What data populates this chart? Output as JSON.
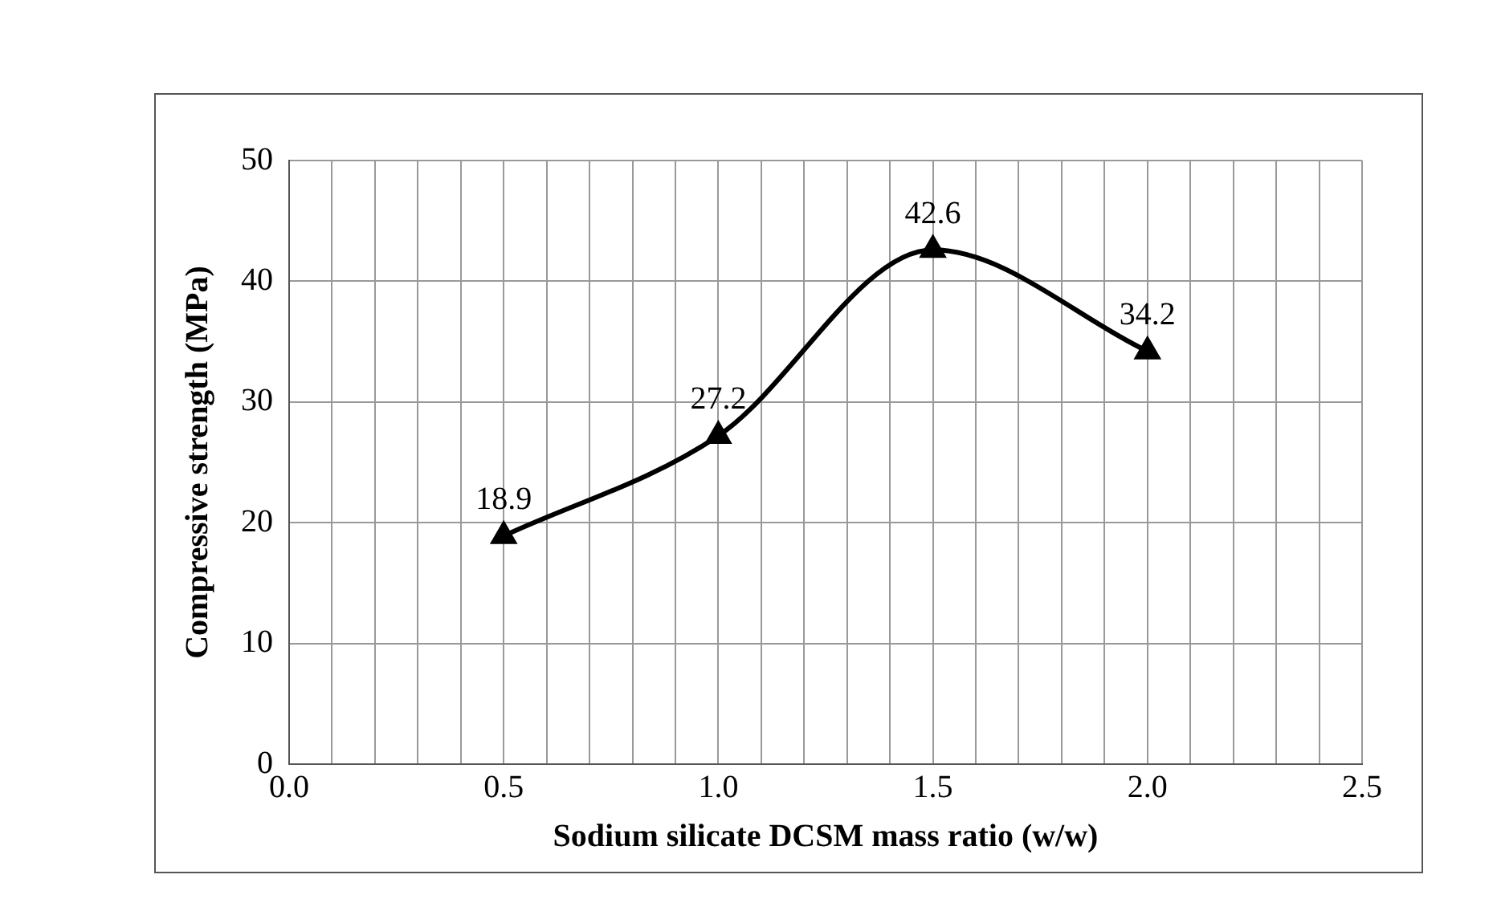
{
  "chart_data": {
    "type": "line",
    "xlabel": "Sodium silicate DCSM mass ratio (w/w)",
    "ylabel": "Compressive strength (MPa)",
    "x": [
      0.5,
      1.0,
      1.5,
      2.0
    ],
    "series": [
      {
        "color": "#000000",
        "values": [
          18.9,
          27.2,
          42.6,
          34.2
        ]
      }
    ],
    "xlim": [
      0,
      2.5
    ],
    "ylim": [
      0,
      50
    ],
    "xticks": [
      {
        "value": 0,
        "label": "0.0"
      },
      {
        "value": 0.1,
        "label": null
      },
      {
        "value": 0.2,
        "label": null
      },
      {
        "value": 0.3,
        "label": null
      },
      {
        "value": 0.4,
        "label": null
      },
      0.5,
      {
        "value": 0.6,
        "label": null
      },
      {
        "value": 0.7,
        "label": null
      },
      {
        "value": 0.8,
        "label": null
      },
      {
        "value": 0.9,
        "label": null
      },
      {
        "value": 1,
        "label": "1.0"
      },
      {
        "value": 1.1,
        "label": null
      },
      {
        "value": 1.2,
        "label": null
      },
      {
        "value": 1.3,
        "label": null
      },
      {
        "value": 1.4,
        "label": null
      },
      1.5,
      {
        "value": 1.6,
        "label": null
      },
      {
        "value": 1.7,
        "label": null
      },
      {
        "value": 1.8,
        "label": null
      },
      {
        "value": 1.9,
        "label": null
      },
      {
        "value": 2,
        "label": "2.0"
      },
      {
        "value": 2.1,
        "label": null
      },
      {
        "value": 2.2,
        "label": null
      },
      {
        "value": 2.3,
        "label": null
      },
      {
        "value": 2.4,
        "label": null
      },
      2.5
    ],
    "yticks": [
      0,
      10,
      20,
      30,
      40,
      50
    ],
    "grid": true,
    "legend": false,
    "marker": "triangle",
    "line_style": "solid",
    "data_labels": true
  }
}
